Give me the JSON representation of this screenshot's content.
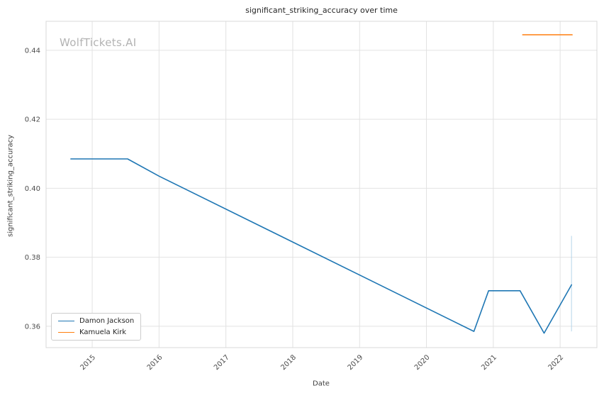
{
  "chart_data": {
    "type": "line",
    "title": "significant_striking_accuracy over time",
    "xlabel": "Date",
    "ylabel": "significant_striking_accuracy",
    "watermark": "WolfTickets.AI",
    "xlim": [
      2014.31,
      2022.55
    ],
    "ylim": [
      0.3538,
      0.4484
    ],
    "yticks": [
      0.36,
      0.38,
      0.4,
      0.42,
      0.44
    ],
    "xticks": [
      2015,
      2016,
      2017,
      2018,
      2019,
      2020,
      2021,
      2022
    ],
    "grid": true,
    "grid_color": "#e2e2e2",
    "frame_color": "#d8d8d8",
    "tick_color": "#4d4d4d",
    "legend_position": "lower left",
    "series": [
      {
        "name": "Damon Jackson",
        "color": "#1f77b4",
        "x": [
          2014.68,
          2015.53,
          2016.0,
          2020.71,
          2020.93,
          2021.4,
          2021.76,
          2022.17
        ],
        "y": [
          0.4085,
          0.4085,
          0.4035,
          0.3585,
          0.3703,
          0.3703,
          0.358,
          0.372
        ]
      },
      {
        "name": "Kamuela Kirk",
        "color": "#ff7f0e",
        "x": [
          2021.44,
          2022.18
        ],
        "y": [
          0.4445,
          0.4445
        ]
      }
    ],
    "vlines": [
      {
        "x": 2022.17,
        "y1": 0.3585,
        "y2": 0.3862,
        "color": "#b5d5ea"
      }
    ]
  }
}
